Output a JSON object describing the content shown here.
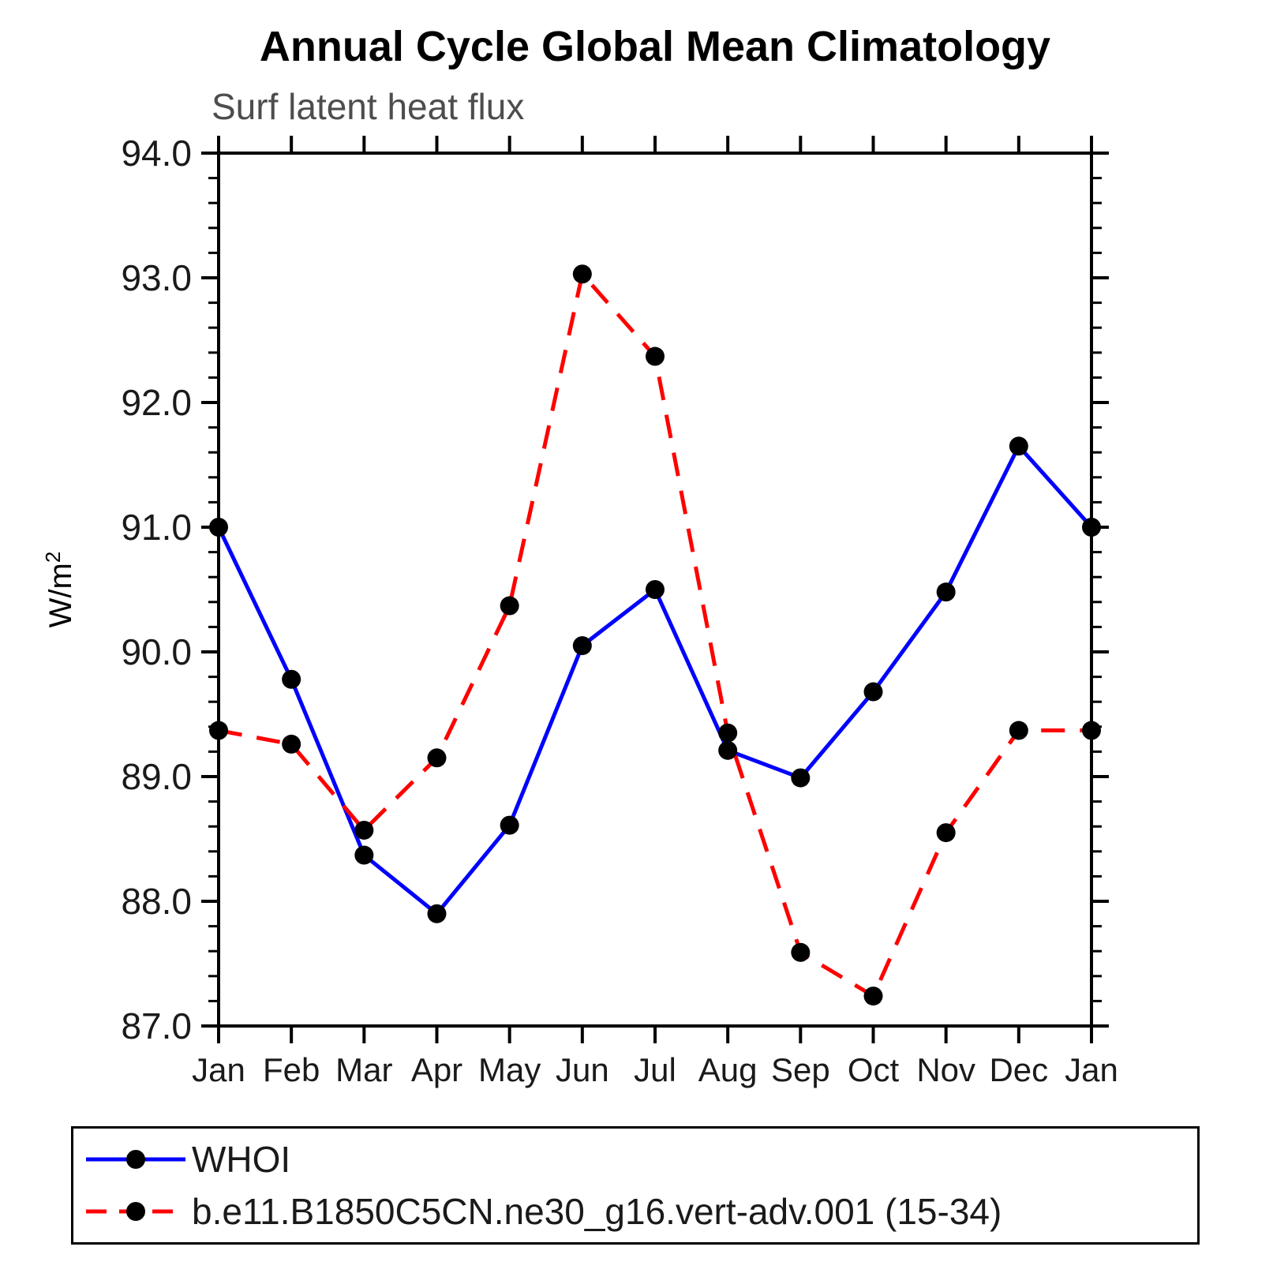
{
  "page": {
    "background": "#ffffff"
  },
  "chart": {
    "title": "Annual Cycle Global Mean Climatology",
    "subtitle": "Surf latent heat flux",
    "subtitle_color": "#4d4d4d",
    "ylabel_base": "W/m",
    "ylabel_sup": "2",
    "axis_color": "#000000"
  },
  "chart_data": {
    "type": "line",
    "title": "Annual Cycle Global Mean Climatology",
    "subtitle": "Surf latent heat flux",
    "xlabel": "",
    "ylabel": "W/m^2",
    "categories": [
      "Jan",
      "Feb",
      "Mar",
      "Apr",
      "May",
      "Jun",
      "Jul",
      "Aug",
      "Sep",
      "Oct",
      "Nov",
      "Dec",
      "Jan"
    ],
    "ylim": [
      87.0,
      94.0
    ],
    "ytick_interval": 1.0,
    "minor_tick_interval": 0.2,
    "ytick_labels": [
      "87.0",
      "88.0",
      "89.0",
      "90.0",
      "91.0",
      "92.0",
      "93.0",
      "94.0"
    ],
    "grid": false,
    "legend_position": "bottom",
    "series": [
      {
        "name": "WHOI",
        "color": "#0000ff",
        "style": "solid",
        "marker": "circle",
        "marker_color": "#000000",
        "values": [
          91.0,
          89.78,
          88.37,
          87.9,
          88.61,
          90.05,
          90.5,
          89.21,
          88.99,
          89.68,
          90.48,
          91.65,
          91.0
        ]
      },
      {
        "name": "b.e11.B1850C5CN.ne30_g16.vert-adv.001 (15-34)",
        "color": "#ff0000",
        "style": "dashed",
        "marker": "circle",
        "marker_color": "#000000",
        "values": [
          89.37,
          89.26,
          88.57,
          89.15,
          90.37,
          93.03,
          92.37,
          89.35,
          87.59,
          87.24,
          88.55,
          89.37,
          89.37
        ]
      }
    ]
  },
  "legend": {
    "items": [
      {
        "label": "WHOI",
        "color": "#0000ff",
        "style": "solid",
        "marker_color": "#000000"
      },
      {
        "label": "b.e11.B1850C5CN.ne30_g16.vert-adv.001 (15-34)",
        "color": "#ff0000",
        "style": "dashed",
        "marker_color": "#000000"
      }
    ]
  }
}
